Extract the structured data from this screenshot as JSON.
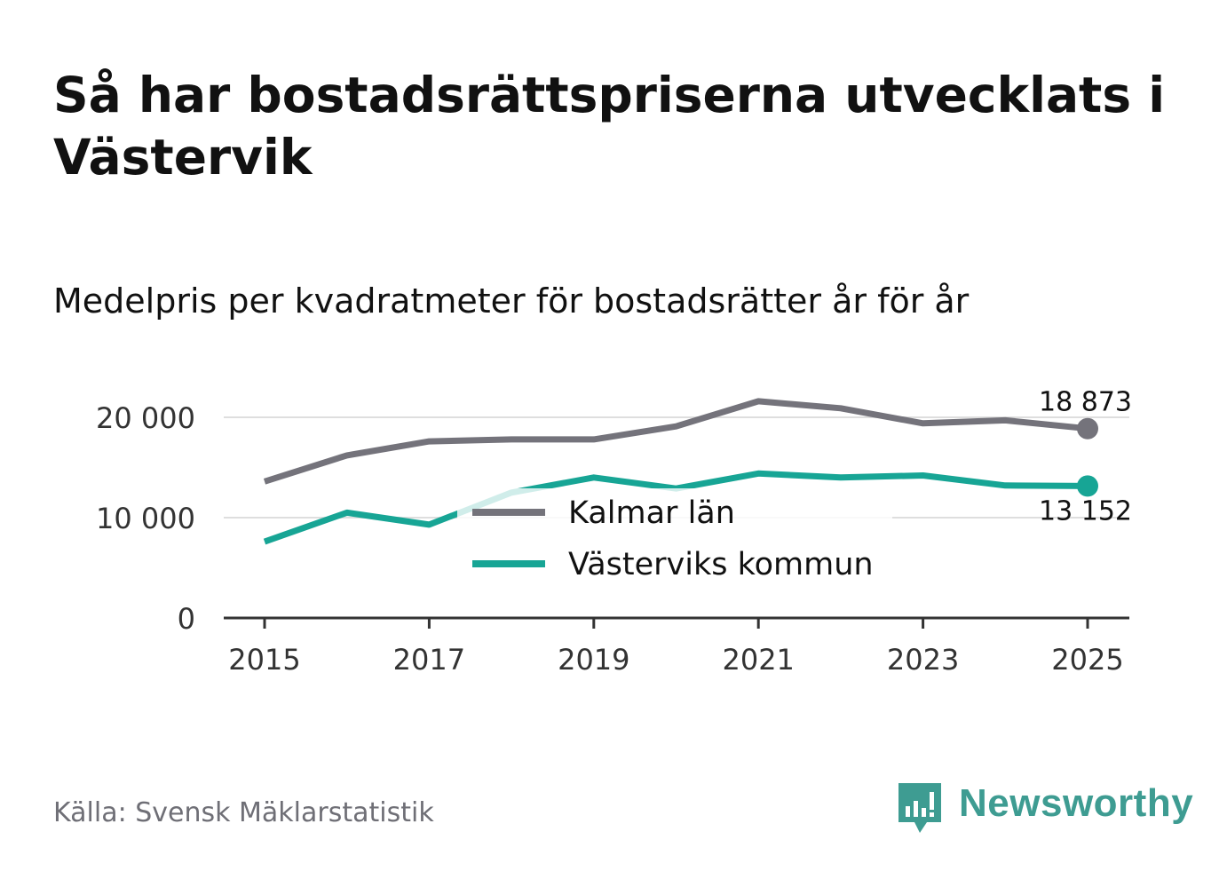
{
  "header": {
    "title": "Så har bostadsrättspriserna utvecklats i Västervik",
    "subtitle": "Medelpris per kvadratmeter för bostadsrätter år för år"
  },
  "footer": {
    "source": "Källa: Svensk Mäklarstatistik",
    "brand": "Newsworthy"
  },
  "colors": {
    "kalmar": "#74737b",
    "vastervik": "#17a595",
    "grid": "#dedede",
    "axis": "#333333",
    "brand": "#3e9c92"
  },
  "chart_data": {
    "type": "line",
    "title": "Medelpris per kvadratmeter för bostadsrätter år för år",
    "xlabel": "",
    "ylabel": "",
    "x": [
      2015,
      2016,
      2017,
      2018,
      2019,
      2020,
      2021,
      2022,
      2023,
      2024,
      2025
    ],
    "xticks": [
      "2015",
      "2017",
      "2019",
      "2021",
      "2023",
      "2025"
    ],
    "yticks": [
      0,
      10000,
      20000
    ],
    "ytick_labels": [
      "0",
      "10 000",
      "20 000"
    ],
    "ylim": [
      0,
      22000
    ],
    "grid": true,
    "legend_position": "center",
    "series": [
      {
        "name": "Kalmar län",
        "color": "#74737b",
        "values": [
          13600,
          16200,
          17600,
          17800,
          17800,
          19100,
          21600,
          20900,
          19400,
          19700,
          18873
        ],
        "end_label": "18 873"
      },
      {
        "name": "Västerviks kommun",
        "color": "#17a595",
        "values": [
          7600,
          10500,
          9300,
          12500,
          14000,
          12900,
          14400,
          14000,
          14200,
          13200,
          13152
        ],
        "end_label": "13 152"
      }
    ]
  }
}
